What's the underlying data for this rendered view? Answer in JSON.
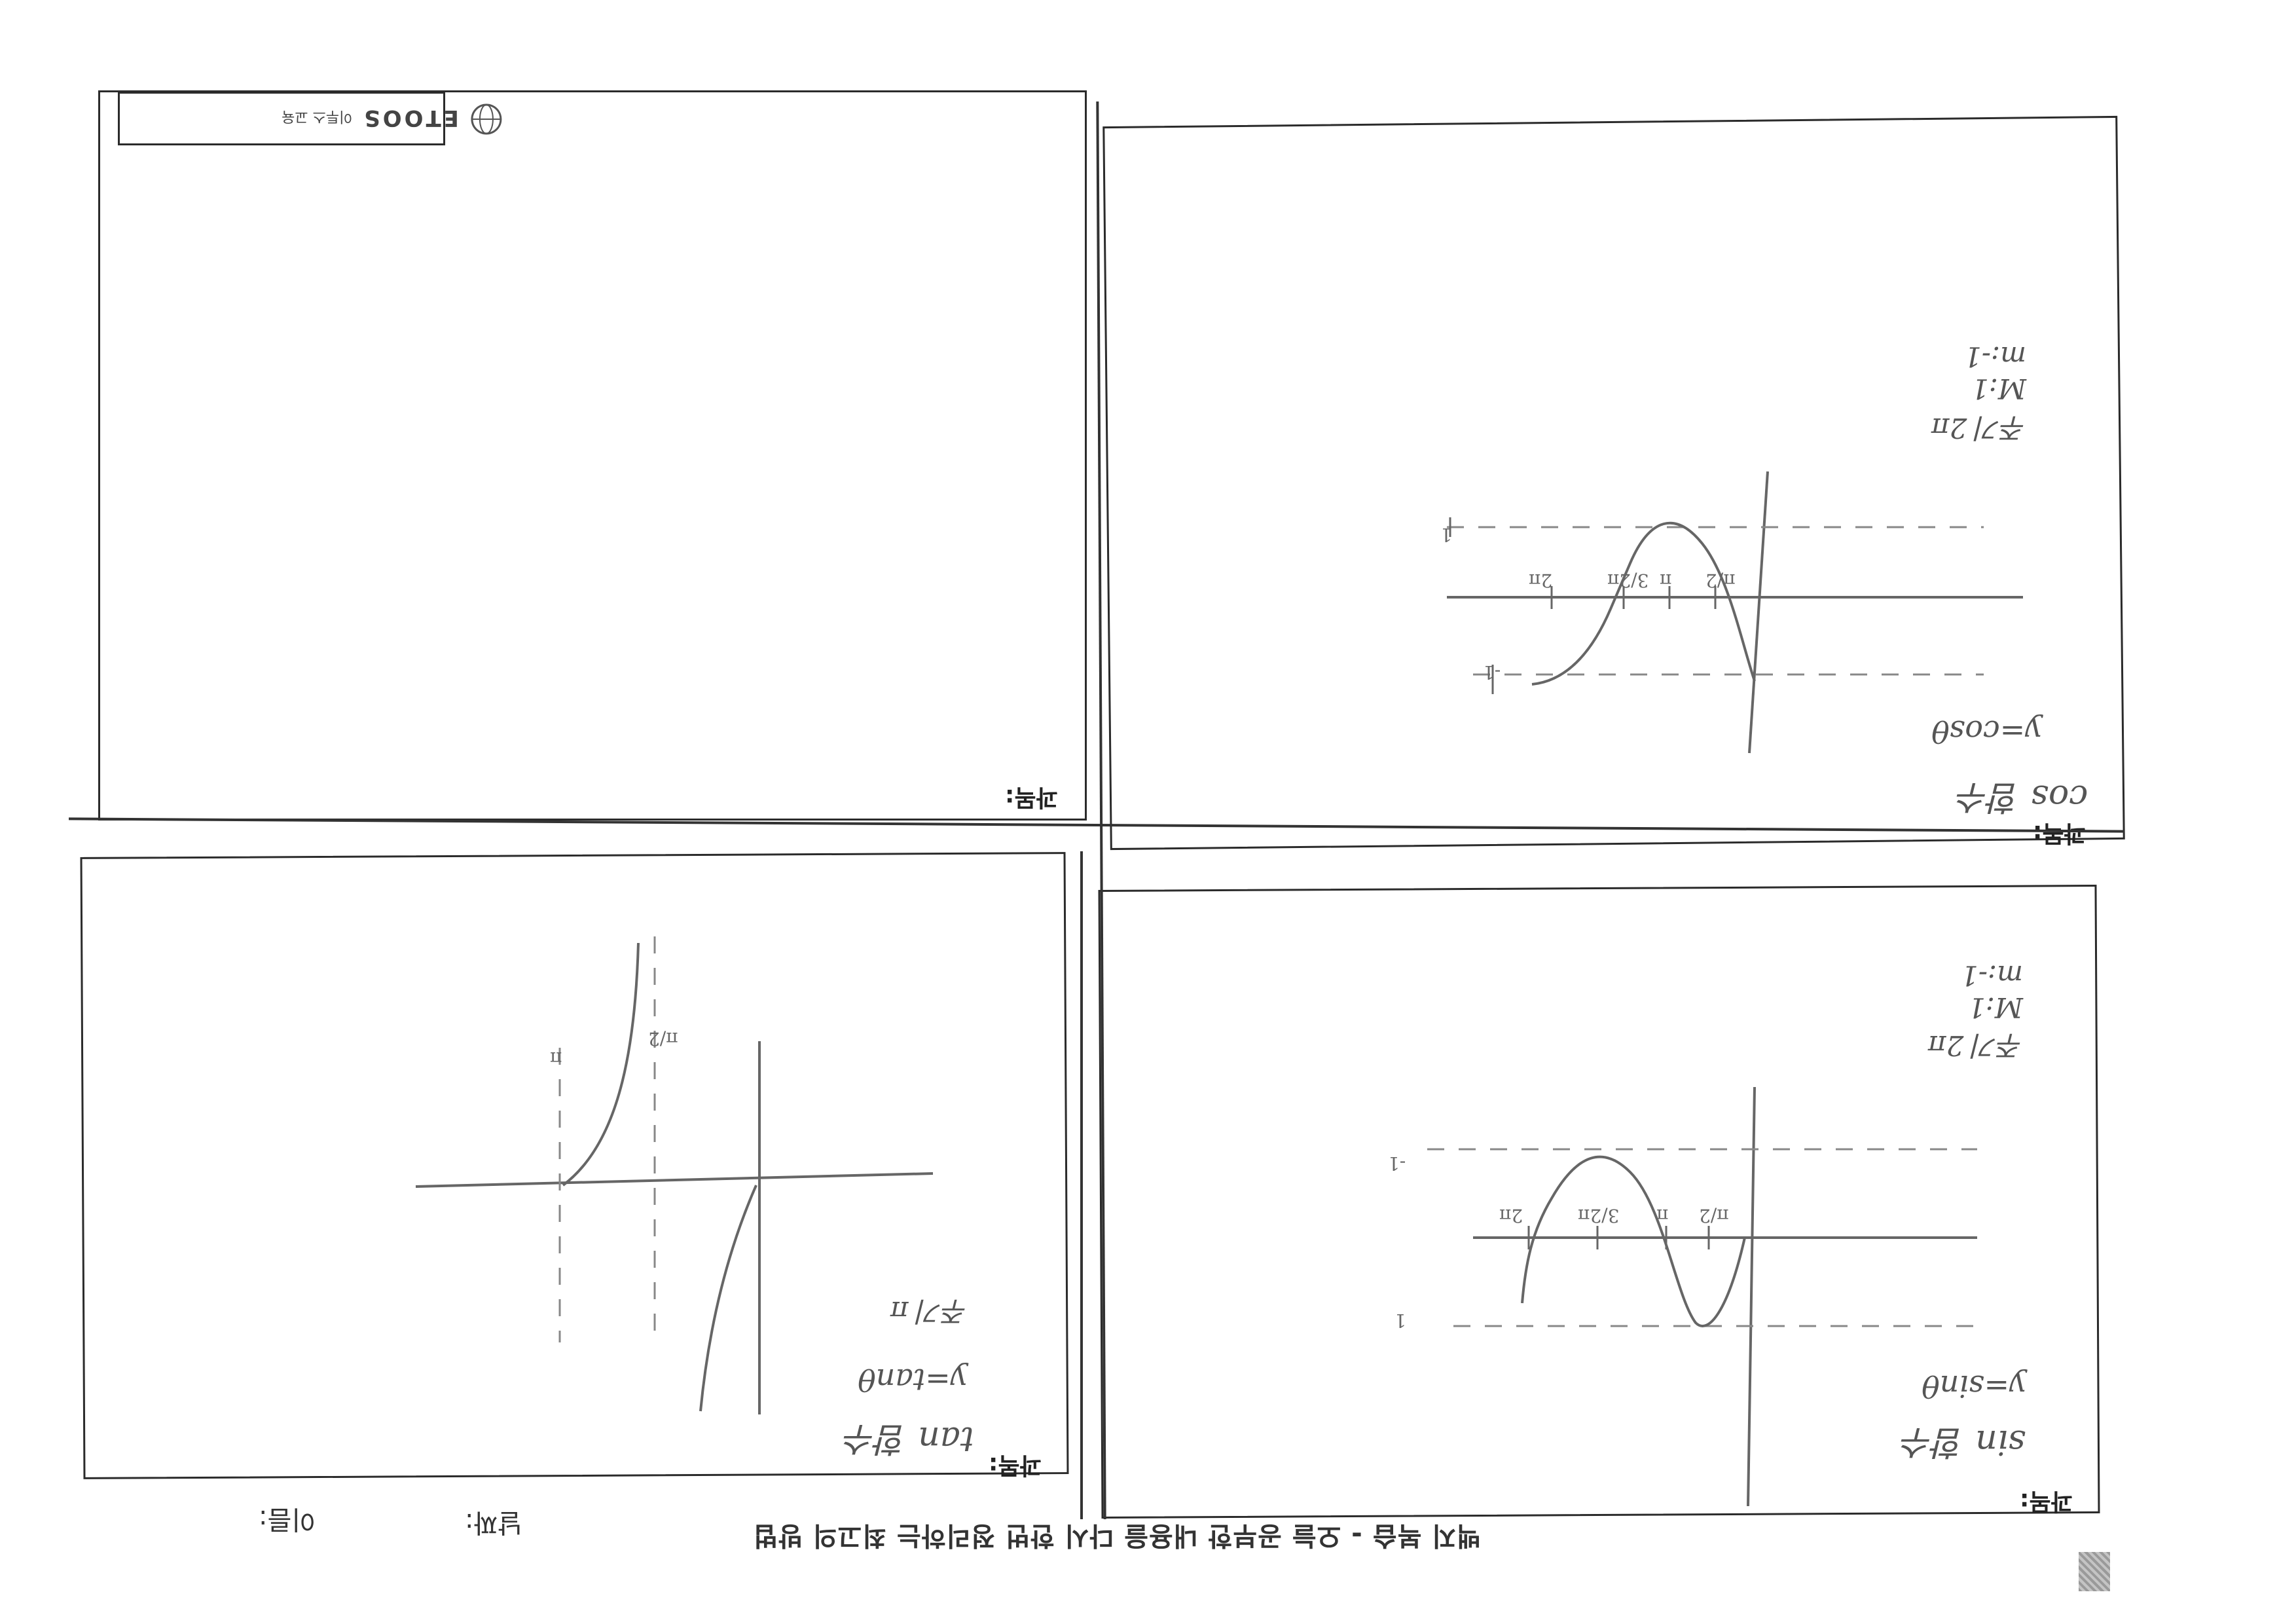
{
  "footer": {
    "title": "백지 복습 - 오늘 공부한 내용을 다시 한번 정리하는 최고의 방법",
    "date_label": "날짜:",
    "name_label": "이름:"
  },
  "logo": {
    "brand": "ETOOS",
    "tagline": "이투스 교육"
  },
  "panels": [
    {
      "subject_label": "과목:",
      "title": "sin 함수",
      "equation": "y=sinθ",
      "notes": [
        "주기 2π",
        "M:1",
        "m:-1"
      ],
      "ticks": [
        "π/2",
        "π",
        "3/2π",
        "2π",
        "1",
        "-1"
      ]
    },
    {
      "subject_label": "과목:",
      "title": "cos 함수",
      "equation": "y=cosθ",
      "notes": [
        "주기 2π",
        "M:1",
        "m:-1"
      ],
      "ticks": [
        "π/2",
        "π",
        "3/2π",
        "2π",
        "1",
        "-1"
      ]
    },
    {
      "subject_label": "과목:",
      "title": "tan 함수",
      "equation": "y=tanθ",
      "notes": [
        "주기 π"
      ],
      "ticks": [
        "π/2",
        "π"
      ]
    },
    {
      "subject_label": "과목:",
      "title": "",
      "equation": "",
      "notes": [],
      "ticks": []
    }
  ],
  "colors": {
    "ink": "#2b2b2b",
    "pencil": "#6a6a6a"
  }
}
